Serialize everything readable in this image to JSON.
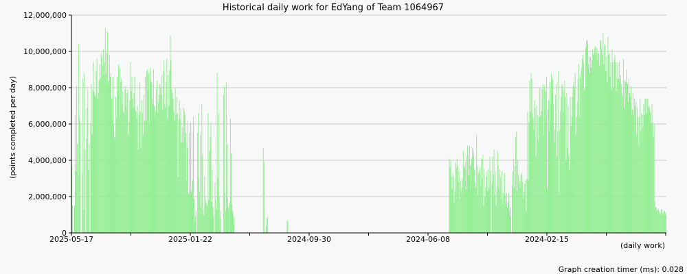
{
  "chart_data": {
    "type": "bar",
    "title": "Historical daily work for EdYang of Team 1064967",
    "ylabel": "(points completed per day)",
    "xlabel": "(daily work)",
    "ylim": [
      0,
      12000000
    ],
    "y_ticks": [
      "0",
      "2,000,000",
      "4,000,000",
      "6,000,000",
      "8,000,000",
      "10,000,000",
      "12,000,000"
    ],
    "x_tick_labels": [
      "2025-05-17",
      "2025-01-22",
      "2024-09-30",
      "2024-06-08",
      "2024-02-15"
    ],
    "grid": true,
    "bar_color": "#90ee90",
    "series": [
      {
        "values": [
          3700000,
          1500000,
          0,
          0,
          1500000,
          6500000,
          3400000,
          8100000,
          4900000,
          0,
          10400000,
          6400000,
          6100000,
          0,
          0,
          3300000,
          8500000,
          1300000,
          8800000,
          4600000,
          0,
          5200000,
          6900000,
          7900000,
          3500000,
          4900000,
          0,
          6000000,
          8200000,
          5400000,
          7900000,
          9400000,
          7800000,
          7600000,
          7500000,
          8900000,
          9600000,
          7400000,
          7700000,
          8400000,
          9300000,
          8500000,
          9900000,
          9700000,
          9200000,
          10100000,
          8700000,
          9400000,
          11300000,
          8800000,
          9900000,
          11100000,
          8200000,
          8400000,
          9800000,
          8600000,
          8800000,
          7400000,
          6200000,
          8600000,
          6000000,
          5200000,
          5300000,
          7500000,
          6300000,
          8600000,
          7800000,
          9300000,
          6400000,
          9100000,
          8300000,
          8500000,
          7100000,
          7800000,
          6700000,
          6600000,
          7900000,
          8100000,
          6900000,
          7700000,
          7900000,
          5400000,
          6100000,
          7300000,
          9400000,
          7800000,
          8600000,
          7400000,
          6900000,
          7700000,
          8600000,
          6800000,
          6700000,
          6300000,
          7000000,
          4600000,
          6500000,
          8300000,
          6700000,
          4700000,
          7300000,
          6600000,
          5400000,
          7600000,
          6200000,
          8600000,
          6200000,
          8900000,
          9000000,
          7800000,
          8800000,
          6000000,
          9100000,
          8400000,
          8300000,
          7400000,
          7100000,
          9000000,
          7000000,
          6400000,
          6700000,
          7900000,
          8400000,
          6600000,
          7200000,
          7600000,
          8200000,
          8000000,
          7600000,
          8700000,
          6800000,
          8900000,
          9500000,
          7100000,
          6900000,
          8300000,
          9600000,
          6300000,
          8700000,
          7000000,
          9000000,
          10900000,
          9500000,
          7900000,
          7700000,
          7400000,
          6700000,
          6200000,
          8000000,
          6500000,
          7500000,
          6600000,
          3100000,
          6200000,
          7300000,
          6300000,
          6900000,
          5000000,
          5800000,
          5000000,
          6900000,
          6700000,
          6500000,
          5500000,
          2900000,
          4700000,
          6200000,
          2200000,
          5500000,
          2100000,
          6100000,
          2300000,
          5600000,
          2900000,
          6400000,
          1900000,
          600000,
          900000,
          1200000,
          0,
          5500000,
          6600000,
          3100000,
          2300000,
          5400000,
          1400000,
          7100000,
          4300000,
          1300000,
          1000000,
          3100000,
          1900000,
          1700000,
          1600000,
          1500000,
          6600000,
          1800000,
          4500000,
          5300000,
          6100000,
          1700000,
          3500000,
          1400000,
          900000,
          0,
          2800000,
          1800000,
          1300000,
          8800000,
          3000000,
          6600000,
          2000000,
          800000,
          1200000,
          0,
          0,
          0,
          7600000,
          8100000,
          2200000,
          1200000,
          8300000,
          4900000,
          1900000,
          1400000,
          0,
          1700000,
          6300000,
          4400000,
          1600000,
          1200000,
          500000,
          900000,
          0,
          0,
          0,
          0,
          0,
          0,
          0,
          0,
          0,
          0,
          0,
          0,
          0,
          0,
          0,
          0,
          0,
          0,
          0,
          0,
          0,
          0,
          0,
          0,
          0,
          0,
          0,
          0,
          0,
          0,
          0,
          0,
          0,
          0,
          0,
          0,
          0,
          0,
          0,
          0,
          0,
          4700000,
          3900000,
          0,
          0,
          400000,
          800000,
          900000,
          0,
          0,
          0,
          0,
          0,
          0,
          0,
          0,
          0,
          0,
          0,
          0,
          0,
          0,
          0,
          0,
          0,
          0,
          0,
          0,
          0,
          0,
          0,
          0,
          0,
          0,
          0,
          700000,
          600000,
          0,
          0,
          0,
          0,
          0,
          0,
          0,
          0,
          0,
          0,
          0,
          0,
          0,
          0,
          0,
          0,
          0,
          0,
          0,
          0,
          0,
          0,
          0,
          0,
          0,
          0,
          0,
          0,
          0,
          0,
          0,
          0,
          0,
          0,
          0,
          0,
          0,
          0,
          0,
          0,
          0,
          0,
          0,
          0,
          0,
          0,
          0,
          0,
          0,
          0,
          0,
          0,
          0,
          0,
          0,
          0,
          0,
          0,
          0,
          0,
          0,
          0,
          0,
          0,
          0,
          0,
          0,
          0,
          0,
          0,
          0,
          0,
          0,
          0,
          0,
          0,
          0,
          0,
          0,
          0,
          0,
          0,
          0,
          0,
          0,
          0,
          0,
          0,
          0,
          0,
          0,
          0,
          0,
          0,
          0,
          0,
          0,
          0,
          0,
          0,
          0,
          0,
          0,
          0,
          0,
          0,
          0,
          0,
          0,
          0,
          0,
          0,
          0,
          0,
          0,
          0,
          0,
          0,
          0,
          0,
          0,
          0,
          0,
          0,
          0,
          0,
          0,
          0,
          0,
          0,
          0,
          0,
          0,
          0,
          0,
          0,
          0,
          0,
          0,
          0,
          0,
          0,
          0,
          0,
          0,
          0,
          0,
          0,
          0,
          0,
          0,
          0,
          0,
          0,
          0,
          0,
          0,
          0,
          0,
          0,
          0,
          0,
          0,
          0,
          0,
          0,
          0,
          0,
          0,
          0,
          0,
          0,
          0,
          0,
          0,
          0,
          0,
          0,
          0,
          0,
          0,
          0,
          0,
          0,
          0,
          0,
          0,
          0,
          0,
          0,
          0,
          0,
          0,
          0,
          0,
          0,
          0,
          0,
          0,
          0,
          0,
          0,
          0,
          0,
          0,
          0,
          0,
          0,
          0,
          0,
          0,
          0,
          0,
          0,
          0,
          0,
          0,
          0,
          0,
          0,
          0,
          0,
          0,
          0,
          0,
          0,
          0,
          0,
          0,
          0,
          4100000,
          3600000,
          4000000,
          3100000,
          2400000,
          3300000,
          3100000,
          1700000,
          2300000,
          3900000,
          3600000,
          4100000,
          3700000,
          2800000,
          3400000,
          1900000,
          2900000,
          2300000,
          2500000,
          3000000,
          4500000,
          3700000,
          3600000,
          3900000,
          2400000,
          4200000,
          4800000,
          4300000,
          3200000,
          4800000,
          3700000,
          2300000,
          4100000,
          4700000,
          4200000,
          4500000,
          3500000,
          2800000,
          2500000,
          5400000,
          3700000,
          2100000,
          3300000,
          3400000,
          3600000,
          2600000,
          4100000,
          3000000,
          4300000,
          1500000,
          3500000,
          2000000,
          2500000,
          3100000,
          3400000,
          2300000,
          3500000,
          2500000,
          4200000,
          3400000,
          0,
          2700000,
          4200000,
          3200000,
          4600000,
          2100000,
          3400000,
          1500000,
          2600000,
          4500000,
          3700000,
          2400000,
          3500000,
          3100000,
          1900000,
          3400000,
          1600000,
          2200000,
          2000000,
          3300000,
          2100000,
          1600000,
          2200000,
          1400000,
          1700000,
          2200000,
          1200000,
          900000,
          1400000,
          0,
          2600000,
          3400000,
          4100000,
          2500000,
          3700000,
          5300000,
          5600000,
          2300000,
          4000000,
          3200000,
          2700000,
          2900000,
          2500000,
          3300000,
          3200000,
          2800000,
          1900000,
          2300000,
          2700000,
          2900000,
          1200000,
          3000000,
          6700000,
          2900000,
          6100000,
          8400000,
          6700000,
          8800000,
          8500000,
          6600000,
          6300000,
          5700000,
          7300000,
          6900000,
          4200000,
          7000000,
          6500000,
          5100000,
          6400000,
          8000000,
          6400000,
          8000000,
          6700000,
          7900000,
          8200000,
          5400000,
          8100000,
          6400000,
          7800000,
          8600000,
          2400000,
          6800000,
          7300000,
          5600000,
          8300000,
          7000000,
          8800000,
          8000000,
          8500000,
          7100000,
          5000000,
          5700000,
          7600000,
          8200000,
          4200000,
          5600000,
          8900000,
          2100000,
          5700000,
          6700000,
          7500000,
          8200000,
          8100000,
          6700000,
          7900000,
          8400000,
          7500000,
          4000000,
          7700000,
          4700000,
          7000000,
          4300000,
          3500000,
          7500000,
          5900000,
          6400000,
          7500000,
          8100000,
          8300000,
          8000000,
          8800000,
          5400000,
          6400000,
          7200000,
          8500000,
          9300000,
          6400000,
          8700000,
          8500000,
          9100000,
          9600000,
          9800000,
          9400000,
          7900000,
          7900000,
          10200000,
          10600000,
          10400000,
          10600000,
          9300000,
          9700000,
          8800000,
          9700000,
          9100000,
          9500000,
          10100000,
          9800000,
          9900000,
          10200000,
          10300000,
          9900000,
          10200000,
          9500000,
          9900000,
          9900000,
          9200000,
          10600000,
          10600000,
          10100000,
          9800000,
          11000000,
          9300000,
          10400000,
          10300000,
          8900000,
          9700000,
          8300000,
          10800000,
          9800000,
          9900000,
          8600000,
          9400000,
          7900000,
          10100000,
          9400000,
          8000000,
          9600000,
          9800000,
          9400000,
          7800000,
          8500000,
          9400000,
          8500000,
          9400000,
          8500000,
          8700000,
          8200000,
          7400000,
          7600000,
          9600000,
          6900000,
          8400000,
          8300000,
          9000000,
          8300000,
          8200000,
          7200000,
          8500000,
          7700000,
          7500000,
          8100000,
          6500000,
          6800000,
          7700000,
          6500000,
          7400000,
          7000000,
          7200000,
          5400000,
          6900000,
          6400000,
          4800000,
          6400000,
          7400000,
          5600000,
          6600000,
          6500000,
          5800000,
          7100000,
          6500000,
          7400000,
          7400000,
          6600000,
          7400000,
          7400000,
          6900000,
          7000000,
          6700000,
          6600000,
          6000000,
          7100000,
          6100000,
          5300000,
          6000000,
          1700000,
          1400000,
          1400000,
          1200000,
          1300000,
          1300000,
          1200000,
          1100000,
          1000000,
          1300000,
          1300000,
          1100000,
          1000000,
          1200000,
          1200000,
          1100000,
          1000000
        ]
      }
    ]
  },
  "footer": {
    "timer_text": "Graph creation timer (ms): 0.028"
  }
}
